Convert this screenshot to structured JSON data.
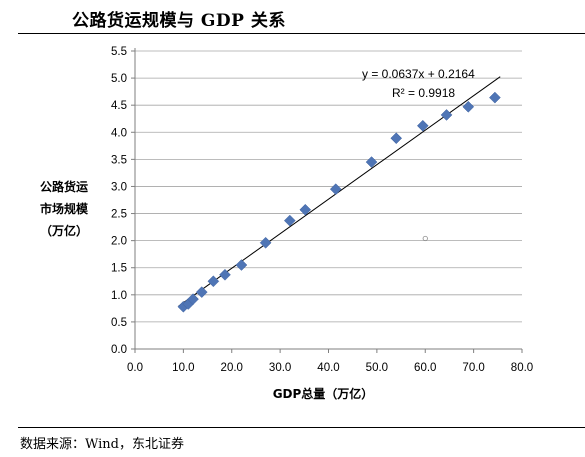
{
  "title": "公路货运规模与 GDP 关系",
  "source": "数据来源：Wind，东北证券",
  "chart_data": {
    "type": "scatter",
    "xlabel": "GDP总量（万亿）",
    "ylabel": [
      "公路货运",
      "市场规模",
      "（万亿）"
    ],
    "xlim": [
      0,
      80
    ],
    "ylim": [
      0,
      5.5
    ],
    "xticks": [
      "0.0",
      "10.0",
      "20.0",
      "30.0",
      "40.0",
      "50.0",
      "60.0",
      "70.0",
      "80.0"
    ],
    "yticks": [
      "0.0",
      "0.5",
      "1.0",
      "1.5",
      "2.0",
      "2.5",
      "3.0",
      "3.5",
      "4.0",
      "4.5",
      "5.0",
      "5.5"
    ],
    "grid": "horizontal",
    "series": [
      {
        "marker": "diamond",
        "color": "#4F75B5",
        "points": [
          [
            10.0,
            0.78
          ],
          [
            11.0,
            0.83
          ],
          [
            12.0,
            0.92
          ],
          [
            13.8,
            1.05
          ],
          [
            16.2,
            1.25
          ],
          [
            18.6,
            1.37
          ],
          [
            22.0,
            1.55
          ],
          [
            27.0,
            1.96
          ],
          [
            32.0,
            2.37
          ],
          [
            35.2,
            2.57
          ],
          [
            41.5,
            2.95
          ],
          [
            48.9,
            3.45
          ],
          [
            54.0,
            3.89
          ],
          [
            59.5,
            4.12
          ],
          [
            64.4,
            4.32
          ],
          [
            68.9,
            4.47
          ],
          [
            74.4,
            4.64
          ]
        ]
      }
    ],
    "trendline": {
      "slope": 0.0637,
      "intercept": 0.2164,
      "x_range": [
        9,
        75.5
      ],
      "equation": "y = 0.0637x + 0.2164",
      "r2": "R² = 0.9918"
    },
    "stray_marker": [
      60.0,
      2.04
    ]
  }
}
